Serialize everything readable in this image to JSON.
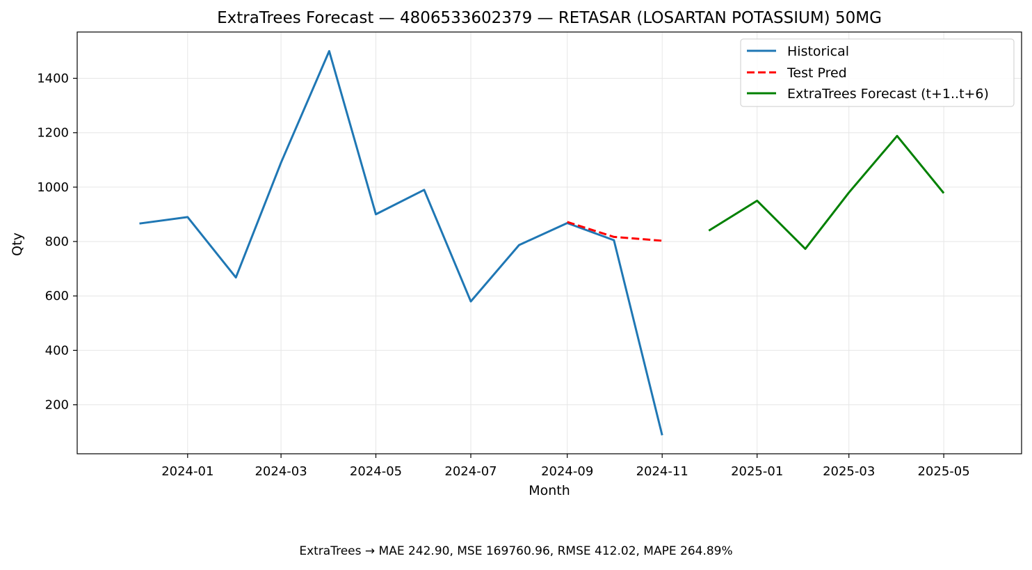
{
  "chart_data": {
    "type": "line",
    "title": "ExtraTrees Forecast — 4806533602379 — RETASAR (LOSARTAN POTASSIUM) 50MG",
    "xlabel": "Month",
    "ylabel": "Qty",
    "x_tick_labels": [
      "2024-01",
      "2024-03",
      "2024-05",
      "2024-07",
      "2024-09",
      "2024-11",
      "2025-01",
      "2025-03",
      "2025-05"
    ],
    "y_ticks": [
      200,
      400,
      600,
      800,
      1000,
      1200,
      1400
    ],
    "xlim": [
      "2023-10-22",
      "2025-06-20"
    ],
    "ylim": [
      20,
      1570
    ],
    "grid": true,
    "legend_position": "top-right",
    "series": [
      {
        "name": "Historical",
        "color": "#1f77b4",
        "style": "solid",
        "points": [
          {
            "x": "2023-12",
            "y": 866
          },
          {
            "x": "2024-01",
            "y": 890
          },
          {
            "x": "2024-02",
            "y": 668
          },
          {
            "x": "2024-03",
            "y": 1090
          },
          {
            "x": "2024-04",
            "y": 1500
          },
          {
            "x": "2024-05",
            "y": 900
          },
          {
            "x": "2024-06",
            "y": 990
          },
          {
            "x": "2024-07",
            "y": 580
          },
          {
            "x": "2024-08",
            "y": 787
          },
          {
            "x": "2024-09",
            "y": 868
          },
          {
            "x": "2024-10",
            "y": 805
          },
          {
            "x": "2024-11",
            "y": 88
          }
        ]
      },
      {
        "name": "Test Pred",
        "color": "#ff0000",
        "style": "dashed",
        "points": [
          {
            "x": "2024-09",
            "y": 872
          },
          {
            "x": "2024-10",
            "y": 817
          },
          {
            "x": "2024-11",
            "y": 803
          }
        ]
      },
      {
        "name": "ExtraTrees Forecast (t+1..t+6)",
        "color": "#008000",
        "style": "solid",
        "points": [
          {
            "x": "2024-12",
            "y": 840
          },
          {
            "x": "2025-01",
            "y": 950
          },
          {
            "x": "2025-02",
            "y": 773
          },
          {
            "x": "2025-03",
            "y": 980
          },
          {
            "x": "2025-04",
            "y": 1188
          },
          {
            "x": "2025-05",
            "y": 978
          }
        ]
      }
    ]
  },
  "footer": {
    "metrics_text": "ExtraTrees → MAE 242.90, MSE 169760.96, RMSE 412.02, MAPE 264.89%"
  }
}
